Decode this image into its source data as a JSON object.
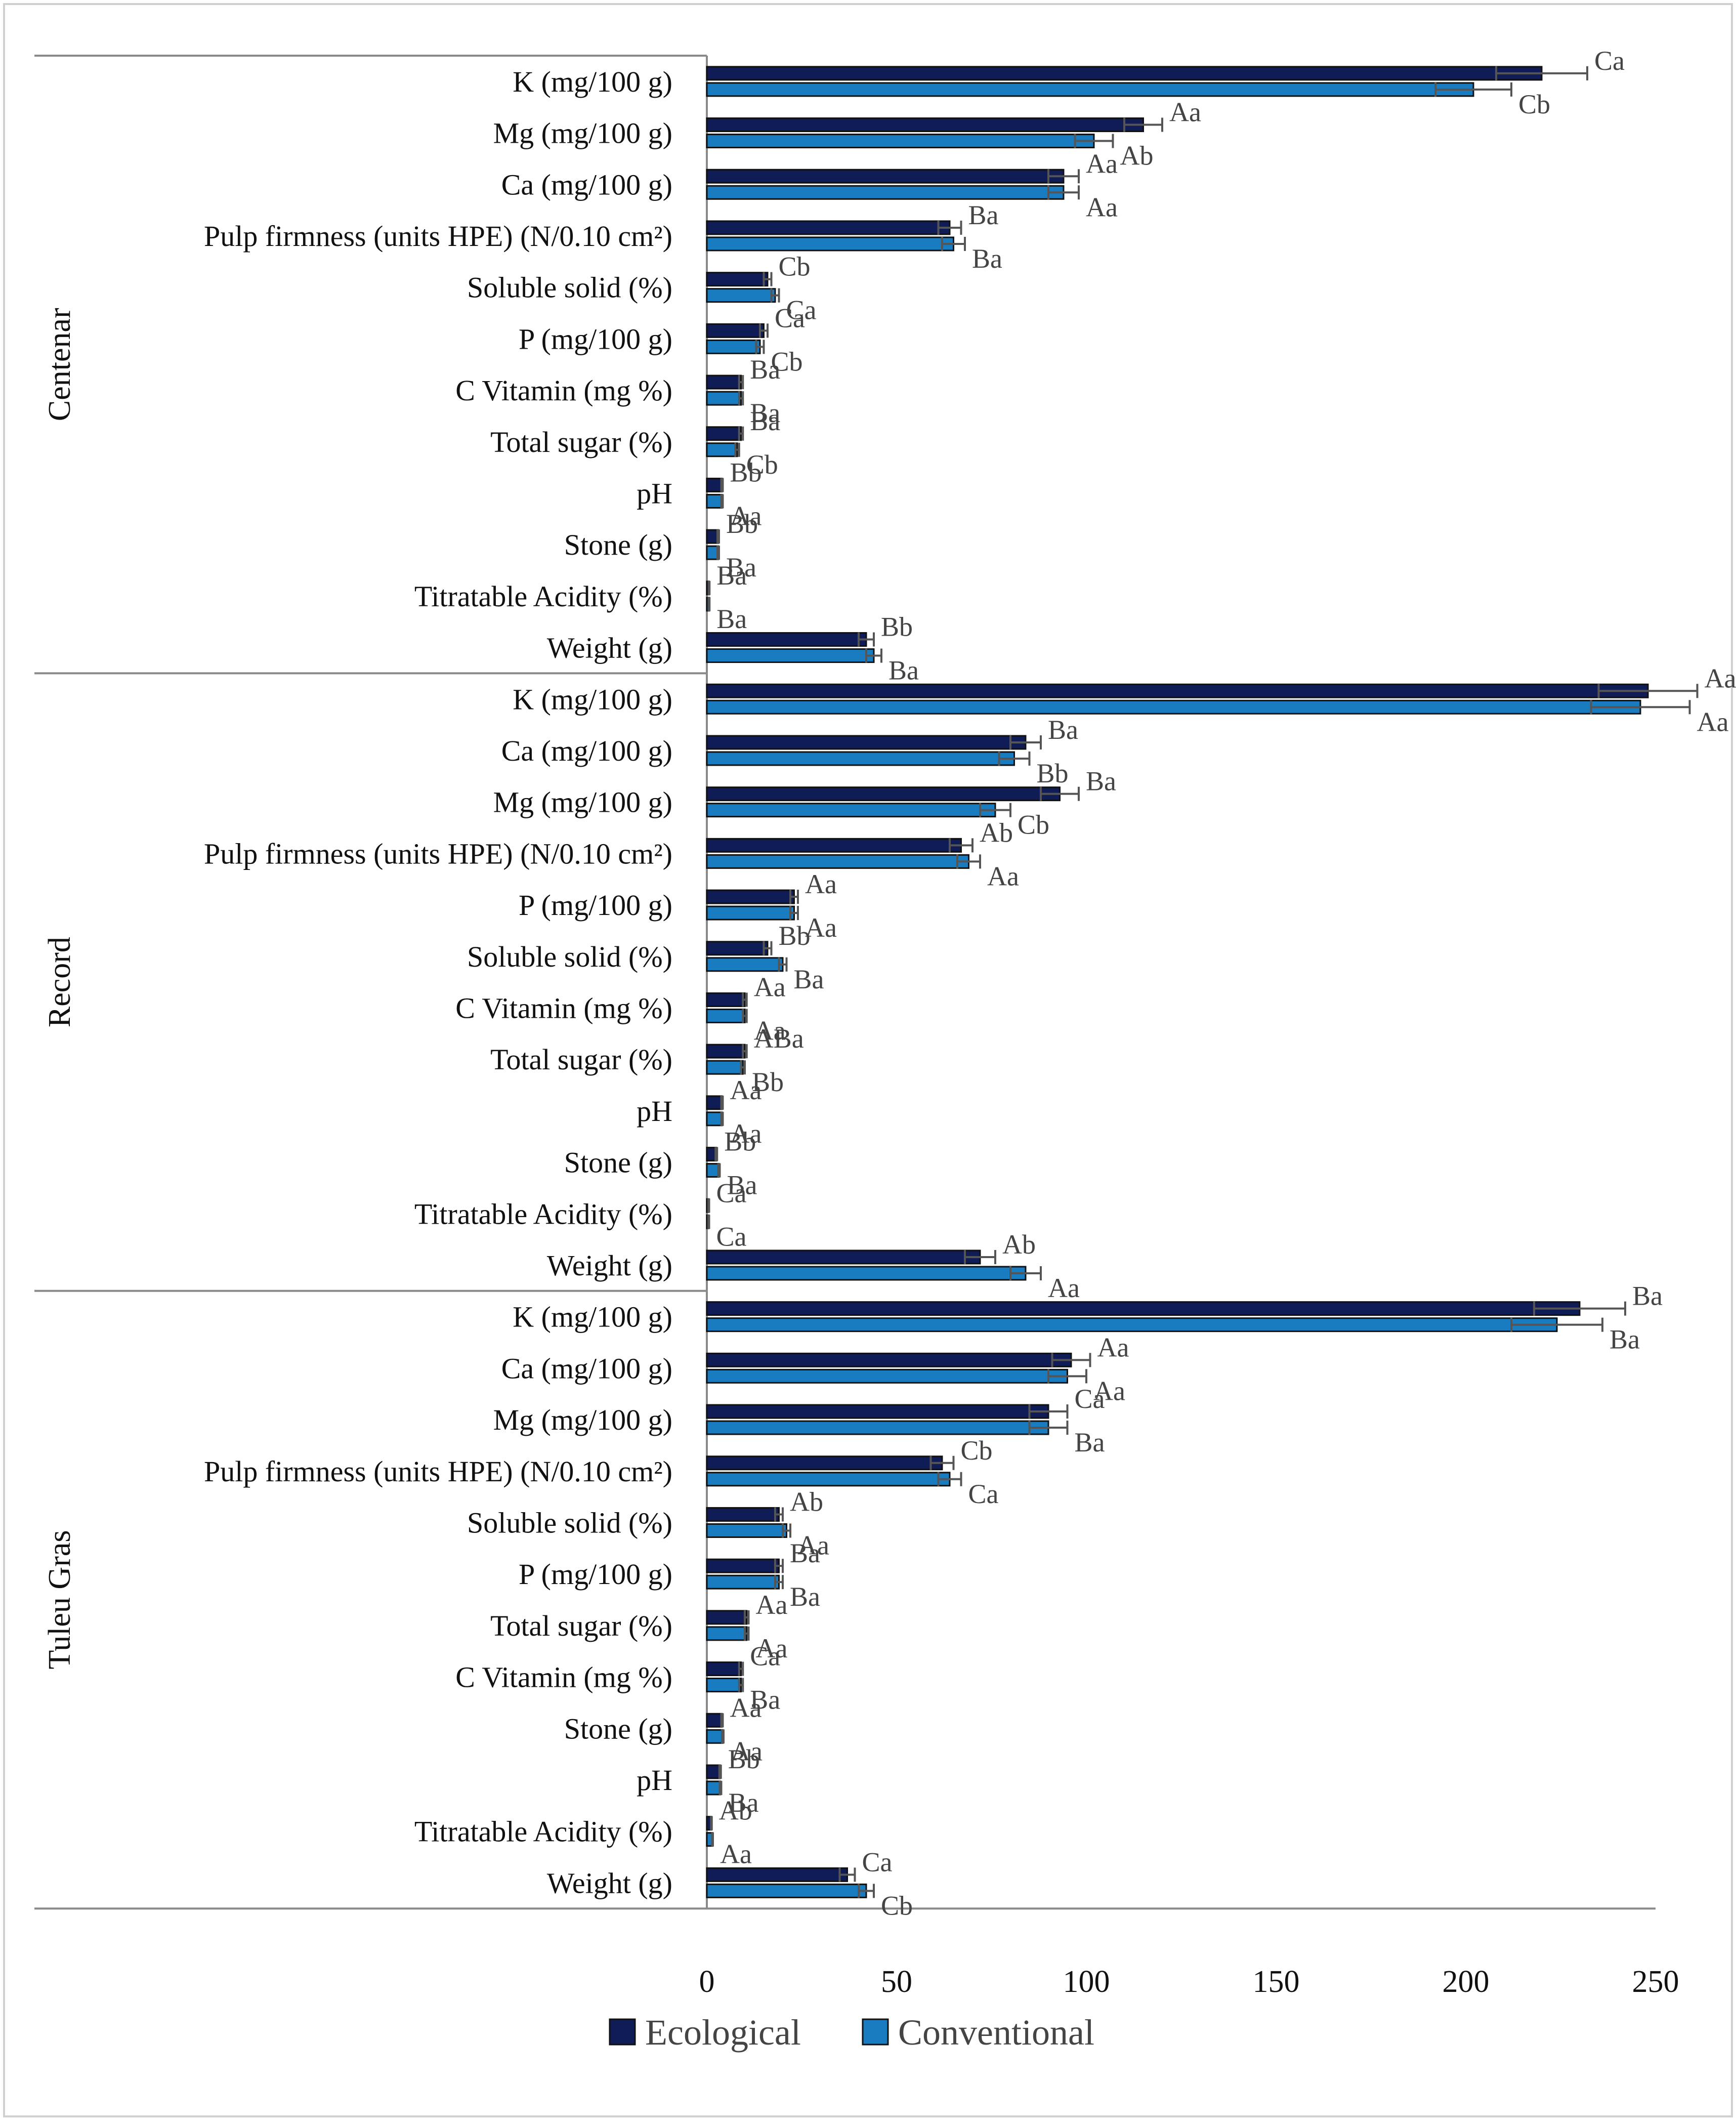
{
  "chart_data": {
    "type": "bar",
    "orientation": "horizontal",
    "title": "",
    "xlabel": "",
    "ylabel": "",
    "xlim": [
      0,
      250
    ],
    "xticks": [
      0,
      50,
      100,
      150,
      200,
      250
    ],
    "grid": false,
    "legend_position": "bottom",
    "legend": [
      "Ecological",
      "Conventional"
    ],
    "series_colors": {
      "Ecological": "#0f1c55",
      "Conventional": "#1a7cc0"
    },
    "groups": [
      {
        "name": "Centenar",
        "items": [
          {
            "category": "K (mg/100 g)",
            "ecological": 220,
            "ecological_err": 12,
            "ecological_label": "Ca",
            "conventional": 202,
            "conventional_err": 10,
            "conventional_label": "Cb"
          },
          {
            "category": "Mg (mg/100 g)",
            "ecological": 115,
            "ecological_err": 5,
            "ecological_label": "Aa",
            "conventional": 102,
            "conventional_err": 5,
            "conventional_label": "Ab"
          },
          {
            "category": "Ca (mg/100 g)",
            "ecological": 94,
            "ecological_err": 4,
            "ecological_label": "Aa",
            "conventional": 94,
            "conventional_err": 4,
            "conventional_label": "Aa"
          },
          {
            "category": "Pulp firmness (units HPE)  (N/0.10 cm²)",
            "ecological": 64,
            "ecological_err": 3,
            "ecological_label": "Ba",
            "conventional": 65,
            "conventional_err": 3,
            "conventional_label": "Ba"
          },
          {
            "category": "Soluble solid (%)",
            "ecological": 16,
            "ecological_err": 1,
            "ecological_label": "Cb",
            "conventional": 18,
            "conventional_err": 1,
            "conventional_label": "Ca"
          },
          {
            "category": "P (mg/100 g)",
            "ecological": 15,
            "ecological_err": 1,
            "ecological_label": "Ca",
            "conventional": 14,
            "conventional_err": 1,
            "conventional_label": "Cb"
          },
          {
            "category": "C Vitamin (mg %)",
            "ecological": 9,
            "ecological_err": 0.5,
            "ecological_label": "Ba",
            "conventional": 9,
            "conventional_err": 0.5,
            "conventional_label": "Ba"
          },
          {
            "category": "Total sugar (%)",
            "ecological": 9,
            "ecological_err": 0.5,
            "ecological_label": "Ba",
            "conventional": 8,
            "conventional_err": 0.5,
            "conventional_label": "Cb"
          },
          {
            "category": "pH",
            "ecological": 4,
            "ecological_err": 0.2,
            "ecological_label": "Bb",
            "conventional": 4,
            "conventional_err": 0.2,
            "conventional_label": "Aa"
          },
          {
            "category": "Stone (g)",
            "ecological": 3,
            "ecological_err": 0.2,
            "ecological_label": "Bb",
            "conventional": 3,
            "conventional_err": 0.2,
            "conventional_label": "Ba"
          },
          {
            "category": "Titratable Acidity (%)",
            "ecological": 0.6,
            "ecological_err": 0.1,
            "ecological_label": "Ba",
            "conventional": 0.6,
            "conventional_err": 0.1,
            "conventional_label": "Ba"
          },
          {
            "category": "Weight (g)",
            "ecological": 42,
            "ecological_err": 2,
            "ecological_label": "Bb",
            "conventional": 44,
            "conventional_err": 2,
            "conventional_label": "Ba"
          }
        ]
      },
      {
        "name": "Record",
        "items": [
          {
            "category": "K (mg/100 g)",
            "ecological": 248,
            "ecological_err": 13,
            "ecological_label": "Aa",
            "conventional": 246,
            "conventional_err": 13,
            "conventional_label": "Aa"
          },
          {
            "category": "Ca (mg/100 g)",
            "ecological": 84,
            "ecological_err": 4,
            "ecological_label": "Ba",
            "conventional": 81,
            "conventional_err": 4,
            "conventional_label": "Bb"
          },
          {
            "category": "Mg (mg/100 g)",
            "ecological": 93,
            "ecological_err": 5,
            "ecological_label": "Ba",
            "conventional": 76,
            "conventional_err": 4,
            "conventional_label": "Cb"
          },
          {
            "category": "Pulp firmness (units HPE) (N/0.10 cm²)",
            "ecological": 67,
            "ecological_err": 3,
            "ecological_label": "Ab",
            "conventional": 69,
            "conventional_err": 3,
            "conventional_label": "Aa"
          },
          {
            "category": "P (mg/100 g)",
            "ecological": 23,
            "ecological_err": 1,
            "ecological_label": "Aa",
            "conventional": 23,
            "conventional_err": 1,
            "conventional_label": "Aa"
          },
          {
            "category": "Soluble solid (%)",
            "ecological": 16,
            "ecological_err": 1,
            "ecological_label": "Bb",
            "conventional": 20,
            "conventional_err": 1,
            "conventional_label": "Ba"
          },
          {
            "category": "C Vitamin (mg %)",
            "ecological": 10,
            "ecological_err": 0.5,
            "ecological_label": "Aa",
            "conventional": 10,
            "conventional_err": 0.5,
            "conventional_label": "Aa"
          },
          {
            "category": "Total sugar  (%)",
            "ecological": 10,
            "ecological_err": 0.5,
            "ecological_label": "ABa",
            "conventional": 9.5,
            "conventional_err": 0.5,
            "conventional_label": "Bb"
          },
          {
            "category": "pH",
            "ecological": 4,
            "ecological_err": 0.2,
            "ecological_label": "Aa",
            "conventional": 4,
            "conventional_err": 0.2,
            "conventional_label": "Aa"
          },
          {
            "category": "Stone (g)",
            "ecological": 2.5,
            "ecological_err": 0.2,
            "ecological_label": "Bb",
            "conventional": 3.2,
            "conventional_err": 0.2,
            "conventional_label": "Ba"
          },
          {
            "category": "Titratable Acidity (%)",
            "ecological": 0.5,
            "ecological_err": 0.1,
            "ecological_label": "Ca",
            "conventional": 0.5,
            "conventional_err": 0.1,
            "conventional_label": "Ca"
          },
          {
            "category": "Weight (g)",
            "ecological": 72,
            "ecological_err": 4,
            "ecological_label": "Ab",
            "conventional": 84,
            "conventional_err": 4,
            "conventional_label": "Aa"
          }
        ]
      },
      {
        "name": "Tuleu Gras",
        "items": [
          {
            "category": "K  (mg/100 g)",
            "ecological": 230,
            "ecological_err": 12,
            "ecological_label": "Ba",
            "conventional": 224,
            "conventional_err": 12,
            "conventional_label": "Ba"
          },
          {
            "category": "Ca (mg/100 g)",
            "ecological": 96,
            "ecological_err": 5,
            "ecological_label": "Aa",
            "conventional": 95,
            "conventional_err": 5,
            "conventional_label": "Aa"
          },
          {
            "category": "Mg (mg/100 g)",
            "ecological": 90,
            "ecological_err": 5,
            "ecological_label": "Ca",
            "conventional": 90,
            "conventional_err": 5,
            "conventional_label": "Ba"
          },
          {
            "category": "Pulp firmness (units HPE) (N/0.10 cm²)",
            "ecological": 62,
            "ecological_err": 3,
            "ecological_label": "Cb",
            "conventional": 64,
            "conventional_err": 3,
            "conventional_label": "Ca"
          },
          {
            "category": "Soluble solid (%)",
            "ecological": 19,
            "ecological_err": 1,
            "ecological_label": "Ab",
            "conventional": 21,
            "conventional_err": 1,
            "conventional_label": "Aa"
          },
          {
            "category": "P  (mg/100 g)",
            "ecological": 19,
            "ecological_err": 1,
            "ecological_label": "Ba",
            "conventional": 19,
            "conventional_err": 1,
            "conventional_label": "Ba"
          },
          {
            "category": "Total sugar (%)",
            "ecological": 10.5,
            "ecological_err": 0.5,
            "ecological_label": "Aa",
            "conventional": 10.5,
            "conventional_err": 0.5,
            "conventional_label": "Aa"
          },
          {
            "category": "C Vitamin (mg %)",
            "ecological": 9,
            "ecological_err": 0.5,
            "ecological_label": "Ca",
            "conventional": 9,
            "conventional_err": 0.5,
            "conventional_label": "Ba"
          },
          {
            "category": "Stone (g)",
            "ecological": 4,
            "ecological_err": 0.2,
            "ecological_label": "Aa",
            "conventional": 4.2,
            "conventional_err": 0.2,
            "conventional_label": "Aa"
          },
          {
            "category": "pH",
            "ecological": 3.5,
            "ecological_err": 0.2,
            "ecological_label": "Bb",
            "conventional": 3.6,
            "conventional_err": 0.2,
            "conventional_label": "Ba"
          },
          {
            "category": "Titratable Acidity (%)",
            "ecological": 1.2,
            "ecological_err": 0.1,
            "ecological_label": "Ab",
            "conventional": 1.5,
            "conventional_err": 0.1,
            "conventional_label": "Aa"
          },
          {
            "category": "Weight (g)",
            "ecological": 37,
            "ecological_err": 2,
            "ecological_label": "Ca",
            "conventional": 42,
            "conventional_err": 2,
            "conventional_label": "Cb"
          }
        ]
      }
    ]
  }
}
